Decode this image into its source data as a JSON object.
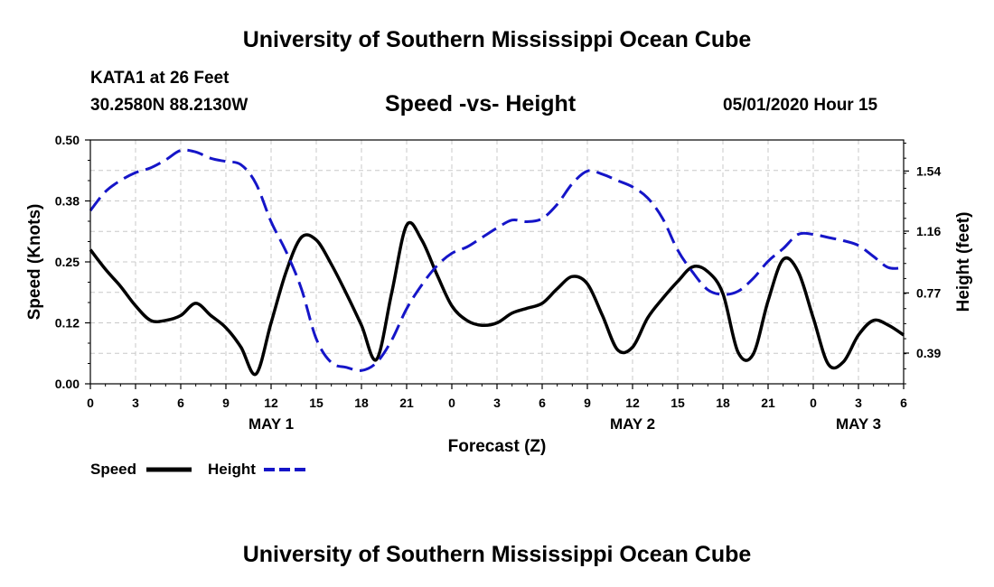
{
  "header": {
    "title": "University of Southern Mississippi Ocean Cube",
    "station": "KATA1 at 26 Feet",
    "coords": "30.2580N 88.2130W",
    "chart_title": "Speed -vs- Height",
    "forecast_time": "05/01/2020 Hour 15"
  },
  "footer": {
    "title": "University of Southern Mississippi Ocean Cube"
  },
  "legend": {
    "speed_label": "Speed",
    "height_label": "Height"
  },
  "colors": {
    "speed": "#000000",
    "height": "#1515c8",
    "grid": "#c8c8c8"
  },
  "chart_data": {
    "type": "line",
    "title": "Speed -vs- Height",
    "xlabel": "Forecast (Z)",
    "ylabel": "Speed (Knots)",
    "ylabel_right": "Height (feet)",
    "x_range": [
      0,
      54
    ],
    "x_ticks": [
      0,
      3,
      6,
      9,
      12,
      15,
      18,
      21,
      24,
      27,
      30,
      33,
      36,
      39,
      42,
      45,
      48,
      51,
      54
    ],
    "x_tick_labels": [
      "0",
      "3",
      "6",
      "9",
      "12",
      "15",
      "18",
      "21",
      "0",
      "3",
      "6",
      "9",
      "12",
      "15",
      "18",
      "21",
      "0",
      "3",
      "6"
    ],
    "day_labels": [
      {
        "x": 12,
        "label": "MAY 1"
      },
      {
        "x": 36,
        "label": "MAY 2"
      },
      {
        "x": 51,
        "label": "MAY 3"
      }
    ],
    "ylim_left": [
      0,
      0.5
    ],
    "y_ticks_left": [
      0.0,
      0.125,
      0.25,
      0.375,
      0.5
    ],
    "y_tick_labels_left": [
      "0.00",
      "0.12",
      "0.25",
      "0.38",
      "0.50"
    ],
    "ylim_right": [
      0.196,
      1.736
    ],
    "y_ticks_right": [
      0.39,
      0.77,
      1.16,
      1.54
    ],
    "y_tick_labels_right": [
      "0.39",
      "0.77",
      "1.16",
      "1.54"
    ],
    "series": [
      {
        "name": "Speed",
        "axis": "left",
        "style": "solid",
        "x": [
          0,
          1,
          2,
          3,
          4,
          5,
          6,
          7,
          8,
          9,
          10,
          11,
          12,
          13,
          14,
          15,
          16,
          17,
          18,
          19,
          20,
          21,
          22,
          23,
          24,
          25,
          26,
          27,
          28,
          29,
          30,
          31,
          32,
          33,
          34,
          35,
          36,
          37,
          38,
          39,
          40,
          41,
          42,
          43,
          44,
          45,
          46,
          47,
          48,
          49,
          50,
          51,
          52,
          53,
          54
        ],
        "values": [
          0.275,
          0.235,
          0.2,
          0.16,
          0.13,
          0.13,
          0.14,
          0.165,
          0.14,
          0.115,
          0.075,
          0.02,
          0.125,
          0.23,
          0.3,
          0.295,
          0.245,
          0.185,
          0.12,
          0.05,
          0.185,
          0.325,
          0.295,
          0.225,
          0.16,
          0.13,
          0.12,
          0.125,
          0.145,
          0.155,
          0.165,
          0.195,
          0.22,
          0.205,
          0.14,
          0.07,
          0.075,
          0.135,
          0.175,
          0.21,
          0.24,
          0.23,
          0.185,
          0.065,
          0.06,
          0.17,
          0.255,
          0.23,
          0.135,
          0.04,
          0.045,
          0.1,
          0.13,
          0.12,
          0.1
        ]
      },
      {
        "name": "Height",
        "axis": "right",
        "style": "dashed",
        "x": [
          0,
          1,
          2,
          3,
          4,
          5,
          6,
          7,
          8,
          9,
          10,
          11,
          12,
          13,
          14,
          15,
          16,
          17,
          18,
          19,
          20,
          21,
          22,
          23,
          24,
          25,
          26,
          27,
          28,
          29,
          30,
          31,
          32,
          33,
          34,
          35,
          36,
          37,
          38,
          39,
          40,
          41,
          42,
          43,
          44,
          45,
          46,
          47,
          48,
          49,
          50,
          51,
          52,
          53,
          54
        ],
        "values": [
          1.29,
          1.41,
          1.48,
          1.53,
          1.56,
          1.61,
          1.67,
          1.66,
          1.62,
          1.6,
          1.58,
          1.46,
          1.22,
          1.03,
          0.8,
          0.48,
          0.33,
          0.3,
          0.28,
          0.33,
          0.47,
          0.67,
          0.82,
          0.94,
          1.02,
          1.06,
          1.12,
          1.18,
          1.23,
          1.22,
          1.24,
          1.33,
          1.46,
          1.54,
          1.52,
          1.48,
          1.44,
          1.37,
          1.24,
          1.04,
          0.9,
          0.79,
          0.76,
          0.78,
          0.86,
          0.97,
          1.05,
          1.14,
          1.14,
          1.12,
          1.1,
          1.07,
          1.0,
          0.93,
          0.93
        ]
      }
    ]
  }
}
